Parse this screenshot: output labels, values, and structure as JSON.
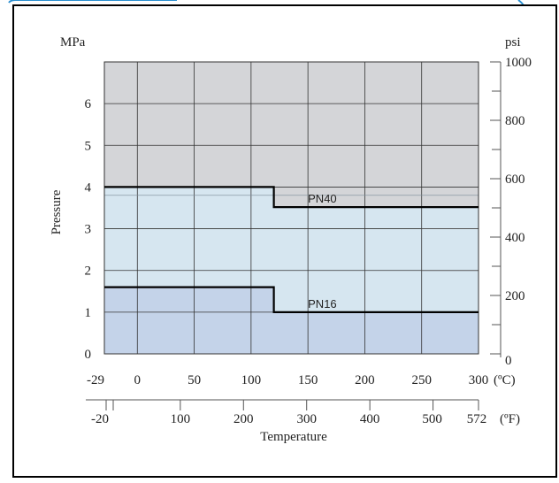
{
  "chart_data": {
    "type": "area",
    "title": "",
    "ylabel": "Pressure",
    "xlabel": "Temperature",
    "left_unit": "MPa",
    "right_unit": "psi",
    "celsius_unit": "(ºC)",
    "fahrenheit_unit": "(ºF)",
    "xlim_c": [
      -29,
      300
    ],
    "ylim_mpa": [
      0,
      7
    ],
    "ylim_psi": [
      0,
      1000
    ],
    "grid": true,
    "celsius_ticks": [
      "-29",
      "0",
      "50",
      "100",
      "150",
      "200",
      "250",
      "300"
    ],
    "fahrenheit_ticks": [
      "-20",
      "100",
      "200",
      "300",
      "400",
      "500",
      "572"
    ],
    "fahrenheit_tick_values": [
      -20,
      100,
      200,
      300,
      400,
      500,
      572
    ],
    "mpa_ticks": [
      "0",
      "1",
      "2",
      "3",
      "4",
      "5",
      "6"
    ],
    "psi_ticks": [
      "0",
      "200",
      "400",
      "600",
      "800",
      "1000"
    ],
    "series": [
      {
        "name": "PN40",
        "x": [
          -29,
          120,
          120,
          300
        ],
        "y": [
          4.0,
          4.0,
          3.52,
          3.52
        ]
      },
      {
        "name": "PN16",
        "x": [
          -29,
          120,
          120,
          300
        ],
        "y": [
          1.6,
          1.6,
          1.0,
          1.0
        ]
      }
    ],
    "colors": {
      "above": "#d4d5d8",
      "middle": "#d6e6f0",
      "lower": "#c4d3e9",
      "line": "#000000",
      "grid": "#333333",
      "header_accent": "#2a8fd0"
    }
  }
}
